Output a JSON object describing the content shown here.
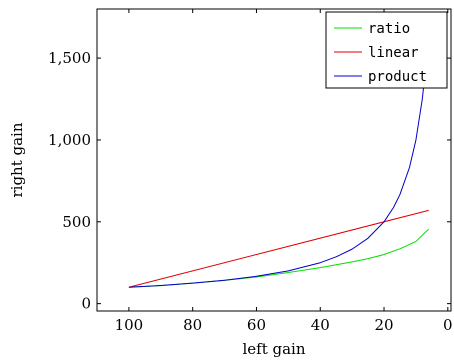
{
  "chart_data": {
    "type": "line",
    "xlabel": "left gain",
    "ylabel": "right gain",
    "x_reversed": true,
    "xlim": [
      110,
      -1
    ],
    "ylim": [
      -45,
      1800
    ],
    "x_ticks": [
      100,
      80,
      60,
      40,
      20,
      0
    ],
    "x_tick_labels": [
      "100",
      "80",
      "60",
      "40",
      "20",
      "0"
    ],
    "y_ticks": [
      0,
      500,
      1000,
      1500
    ],
    "y_tick_labels": [
      "0",
      "500",
      "1,000",
      "1,500"
    ],
    "grid": false,
    "legend_position": "top-right",
    "series": [
      {
        "name": "ratio",
        "color": "#00e000",
        "x": [
          100,
          90,
          80,
          70,
          60,
          50,
          40,
          30,
          25,
          20,
          15,
          10,
          6
        ],
        "y": [
          100,
          110,
          125,
          142,
          163,
          190,
          220,
          255,
          275,
          300,
          335,
          380,
          455
        ]
      },
      {
        "name": "linear",
        "color": "#e00000",
        "x": [
          100,
          6
        ],
        "y": [
          100,
          570
        ]
      },
      {
        "name": "product",
        "color": "#0000cc",
        "x": [
          100,
          90,
          80,
          70,
          60,
          50,
          40,
          35,
          30,
          25,
          20,
          17,
          15,
          12,
          10,
          8,
          7,
          6
        ],
        "y": [
          100,
          111,
          125,
          143,
          167,
          200,
          250,
          286,
          333,
          400,
          500,
          588,
          667,
          833,
          1000,
          1250,
          1430,
          1670
        ]
      }
    ]
  }
}
